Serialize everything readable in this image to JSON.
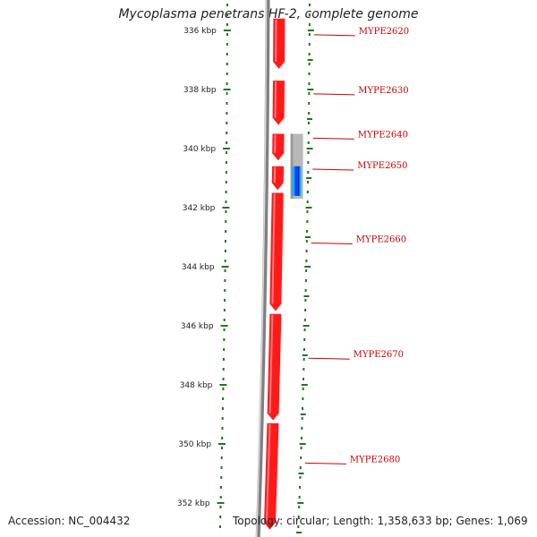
{
  "title": "Mycoplasma penetrans HF-2, complete genome",
  "footer": {
    "accession": "Accession: NC_004432",
    "summary": "Topology: circular; Length: 1,358,633 bp; Genes: 1,069"
  },
  "colors": {
    "gene_arrow": "#ff1a1a",
    "gene_label": "#cc0000",
    "tick_marks": "#1a7a1a",
    "backbone": "#808080",
    "feature_grey": "#b8b8b8",
    "feature_blue": "#1a3cff",
    "feature_cyan": "#00b4ff"
  },
  "scale": {
    "unit": "kbp",
    "range_kbp": [
      336,
      352
    ],
    "tick_labels": [
      "336 kbp",
      "338 kbp",
      "340 kbp",
      "342 kbp",
      "344 kbp",
      "346 kbp",
      "348 kbp",
      "350 kbp",
      "352 kbp"
    ]
  },
  "genes": [
    {
      "label": "MYPE2620",
      "start_kbp": 335.6,
      "end_kbp": 337.3
    },
    {
      "label": "MYPE2630",
      "start_kbp": 337.7,
      "end_kbp": 339.2
    },
    {
      "label": "MYPE2640",
      "start_kbp": 339.5,
      "end_kbp": 340.4
    },
    {
      "label": "MYPE2650",
      "start_kbp": 340.6,
      "end_kbp": 341.4
    },
    {
      "label": "MYPE2660",
      "start_kbp": 341.5,
      "end_kbp": 345.5
    },
    {
      "label": "MYPE2670",
      "start_kbp": 345.6,
      "end_kbp": 349.2
    },
    {
      "label": "MYPE2680",
      "start_kbp": 349.3,
      "end_kbp": 352.9
    }
  ],
  "features": [
    {
      "name": "grey-feature",
      "start_kbp": 339.5,
      "end_kbp": 341.7
    },
    {
      "name": "blue-feature",
      "start_kbp": 340.6,
      "end_kbp": 341.6
    }
  ]
}
